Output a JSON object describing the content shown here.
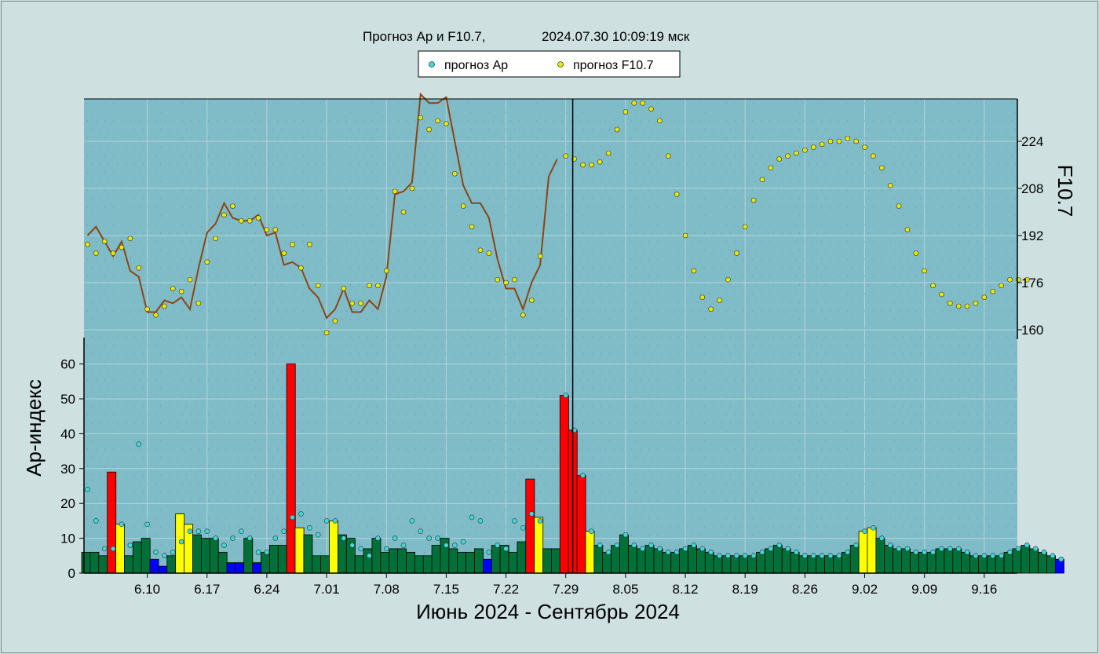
{
  "header": {
    "title": "Прогноз Ap и F10.7,",
    "timestamp": "2024.07.30 10:09:19 мск"
  },
  "legend": {
    "items": [
      {
        "label": "прогноз Ap",
        "color": "#40d8d8"
      },
      {
        "label": "прогноз F10.7",
        "color": "#e8e800"
      }
    ]
  },
  "chart_data": {
    "type": "bar",
    "xlabel": "Июнь 2024 - Сентябрь 2024",
    "ylabel": "Ap-индекс",
    "y2label": "F10.7",
    "ap_ylim": [
      0,
      60
    ],
    "ap_ticks": [
      0,
      10,
      20,
      30,
      40,
      50,
      60
    ],
    "f107_ticks": [
      160,
      176,
      192,
      208,
      224
    ],
    "x_ticks": [
      "6.10",
      "6.17",
      "6.24",
      "7.01",
      "7.08",
      "7.15",
      "7.22",
      "7.29",
      "8.05",
      "8.12",
      "8.19",
      "8.26",
      "9.02",
      "9.09",
      "9.16"
    ],
    "start_date": "2024-06-03",
    "now_day": 57.5,
    "grid": true,
    "colors": {
      "quiet": "#0000ff",
      "normal": "#007038",
      "unsettled": "#ffff00",
      "storm": "#ff0000",
      "ap_point": "#40d8d8",
      "f107_point": "#e8e800",
      "f107_line": "#8b4513",
      "plot_bg": "#80bcc8",
      "marker": "#000000"
    },
    "ap_observed": [
      6,
      6,
      5,
      29,
      14,
      5,
      9,
      10,
      4,
      2,
      5,
      17,
      14,
      11,
      10,
      10,
      6,
      3,
      3,
      10,
      3,
      6,
      8,
      8,
      60,
      13,
      11,
      5,
      5,
      15,
      11,
      10,
      5,
      7,
      10,
      6,
      7,
      7,
      6,
      5,
      5,
      8,
      10,
      7,
      6,
      6,
      7,
      4,
      8,
      8,
      6,
      9,
      27,
      16,
      7,
      7
    ],
    "ap_forecast_hist": [
      24,
      15,
      7,
      7,
      14,
      8,
      37,
      14,
      6,
      5,
      6,
      9,
      12,
      12,
      12,
      10,
      8,
      10,
      12,
      10,
      6,
      6,
      10,
      12,
      16,
      17,
      13,
      11,
      15,
      15,
      10,
      8,
      7,
      5,
      10,
      7,
      10,
      8,
      15,
      12,
      10,
      10,
      8,
      8,
      9,
      16,
      15,
      6,
      8,
      7,
      15,
      13,
      17,
      15
    ],
    "ap_forecast": [
      51,
      41,
      28,
      12,
      8,
      6,
      8,
      11,
      8,
      7,
      8,
      7,
      6,
      6,
      7,
      8,
      7,
      6,
      5,
      5,
      5,
      5,
      5,
      6,
      7,
      8,
      7,
      6,
      5,
      5,
      5,
      5,
      5,
      6,
      8,
      12,
      13,
      10,
      8,
      7,
      7,
      6,
      6,
      6,
      7,
      7,
      7,
      6,
      5,
      5,
      5,
      5,
      6,
      7,
      8,
      7,
      6,
      5,
      4
    ],
    "f107_observed": [
      192,
      195,
      190,
      185,
      190,
      180,
      178,
      166,
      166,
      170,
      169,
      171,
      167,
      181,
      193,
      196,
      203,
      198,
      197,
      197,
      199,
      192,
      193,
      182,
      183,
      181,
      174,
      171,
      164,
      167,
      174,
      166,
      166,
      170,
      167,
      178,
      206,
      207,
      210,
      240,
      237,
      237,
      239,
      224,
      209,
      203,
      203,
      198,
      184,
      174,
      174,
      167,
      176,
      182,
      212,
      218
    ],
    "f107_forecast_hist": [
      189,
      186,
      190,
      186,
      188,
      191,
      181,
      167,
      165,
      168,
      174,
      173,
      177,
      169,
      183,
      191,
      199,
      202,
      197,
      197,
      198,
      194,
      194,
      186,
      189,
      181,
      189,
      175,
      159,
      163,
      174,
      169,
      169,
      175,
      175,
      180,
      207,
      200,
      208,
      232,
      228,
      231,
      230,
      213,
      202,
      195,
      187,
      186,
      177,
      176,
      177,
      165,
      170,
      185
    ],
    "f107_forecast": [
      219,
      218,
      216,
      216,
      217,
      220,
      228,
      234,
      237,
      237,
      235,
      231,
      219,
      206,
      192,
      180,
      171,
      167,
      170,
      177,
      186,
      195,
      204,
      211,
      215,
      218,
      219,
      220,
      221,
      222,
      223,
      224,
      224,
      225,
      224,
      222,
      219,
      215,
      209,
      202,
      194,
      186,
      180,
      175,
      172,
      169,
      168,
      168,
      169,
      171,
      173,
      175,
      177,
      177,
      177
    ]
  }
}
